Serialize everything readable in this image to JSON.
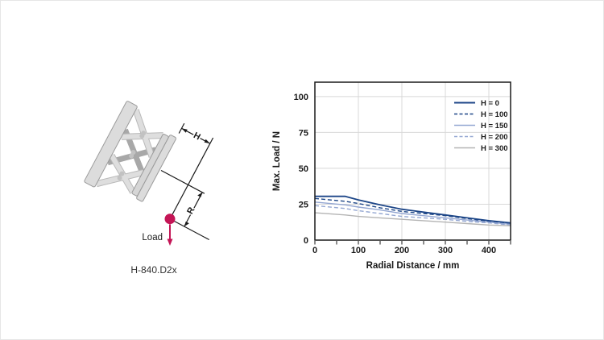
{
  "illustration": {
    "dim_h_label": "H",
    "dim_r_label": "R",
    "load_label": "Load",
    "caption": "H-840.D2x",
    "load_color": "#c41556",
    "body_light": "#dcdcdc",
    "body_mid": "#d2d2d2",
    "body_dark": "#a8a8a8",
    "outline": "#9b9b9b",
    "line_color": "#1a1a1a"
  },
  "chart_data": {
    "type": "line",
    "title": "",
    "xlabel": "Radial Distance / mm",
    "ylabel": "Max. Load / N",
    "xlim": [
      0,
      450
    ],
    "ylim": [
      0,
      110
    ],
    "xticks": [
      0,
      100,
      200,
      300,
      400
    ],
    "yticks": [
      0,
      25,
      50,
      75,
      100
    ],
    "x_minor_step": 50,
    "grid": true,
    "grid_color": "#d8d8d8",
    "frame_color": "#1a1a1a",
    "legend_position": "top-right-inside",
    "x": [
      0,
      70,
      100,
      150,
      200,
      250,
      300,
      350,
      400,
      450
    ],
    "series": [
      {
        "name": "H = 0",
        "color": "#1c4587",
        "dash": "solid",
        "width": 1.8,
        "values": [
          30.5,
          30.5,
          28,
          24.5,
          21.5,
          19.5,
          17.5,
          15.5,
          13.5,
          12
        ]
      },
      {
        "name": "H = 100",
        "color": "#1c4587",
        "dash": "dashed",
        "width": 1.4,
        "values": [
          29,
          27,
          25.5,
          22.5,
          20,
          18.5,
          17,
          15,
          13,
          11.5
        ]
      },
      {
        "name": "H = 150",
        "color": "#94a7d2",
        "dash": "solid",
        "width": 1.4,
        "values": [
          26.5,
          24.5,
          23,
          21,
          18.5,
          17,
          15.5,
          14,
          12.5,
          11
        ]
      },
      {
        "name": "H = 200",
        "color": "#94a7d2",
        "dash": "dashed",
        "width": 1.4,
        "values": [
          24,
          22,
          20.5,
          18.5,
          16.5,
          15.5,
          14.5,
          13,
          12,
          10.5
        ]
      },
      {
        "name": "H = 300",
        "color": "#b4b4b4",
        "dash": "solid",
        "width": 1.4,
        "values": [
          19,
          17.5,
          16.5,
          15.5,
          14.5,
          13.5,
          12.5,
          11.5,
          10.5,
          10
        ]
      }
    ]
  }
}
